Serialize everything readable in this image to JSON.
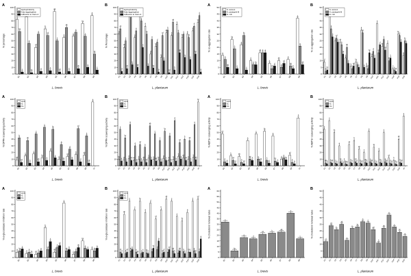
{
  "figure": {
    "background": "#ffffff",
    "layout": "4x3 grid of bar-chart panels from a probiotics characterization figure"
  },
  "colors": {
    "white_bar": "#ffffff",
    "gray_bar": "#8a8a8a",
    "black_bar": "#161616",
    "axis": "#000000"
  },
  "sig_letter_cycle": [
    "a",
    "b",
    "c",
    "d",
    "ab",
    "bc",
    "cd",
    "e"
  ],
  "chart_data": [
    {
      "type": "bar",
      "panel_label": "A",
      "ylabel": "% percentage",
      "xlabel": "L. brevis",
      "ylim": [
        0,
        100
      ],
      "ystep": 10,
      "grid": false,
      "legend_position": "top-left",
      "categories": [
        "B1",
        "B2",
        "B3",
        "B4",
        "B5",
        "B6",
        "B7",
        "B8",
        "B9"
      ],
      "series": [
        {
          "name": "Hydrophobicity",
          "color_key": "white",
          "values": [
            82,
            86,
            40,
            68,
            94,
            55,
            57,
            76,
            88
          ]
        },
        {
          "name": "Auto-aggregation",
          "color_key": "gray",
          "values": [
            64,
            46,
            60,
            58,
            50,
            70,
            63,
            57,
            30
          ]
        },
        {
          "name": "Adhesion to Caco-2",
          "color_key": "black",
          "values": [
            3,
            2,
            4,
            5,
            3,
            4,
            8,
            10,
            6
          ]
        }
      ]
    },
    {
      "type": "bar",
      "panel_label": "B",
      "ylabel": "% Percentage",
      "xlabel": "L. plantarum",
      "ylim": [
        0,
        100
      ],
      "ystep": 10,
      "grid": false,
      "legend_position": "top-left",
      "categories": [
        "P1",
        "P2",
        "P3",
        "P4",
        "P5",
        "P6",
        "P7",
        "P8",
        "P9",
        "P10",
        "P11",
        "P12",
        "P13",
        "P14",
        "P15",
        "P16"
      ],
      "series": [
        {
          "name": "Hydrophobicity",
          "color_key": "white",
          "values": [
            60,
            40,
            92,
            55,
            88,
            72,
            30,
            42,
            25,
            62,
            58,
            75,
            55,
            60,
            65,
            78
          ]
        },
        {
          "name": "Auto-aggregation",
          "color_key": "gray",
          "values": [
            68,
            50,
            85,
            65,
            80,
            60,
            52,
            48,
            58,
            66,
            78,
            62,
            60,
            55,
            72,
            88
          ]
        },
        {
          "name": "Adhesion to Caco-2",
          "color_key": "black",
          "values": [
            4,
            8,
            14,
            10,
            40,
            12,
            9,
            3,
            20,
            2,
            6,
            32,
            25,
            22,
            30,
            3
          ]
        }
      ]
    },
    {
      "type": "bar",
      "panel_label": "A",
      "ylabel": "% co-aggregation rate",
      "xlabel": "L. brevis",
      "ylim": [
        0,
        50
      ],
      "ystep": 5,
      "grid": false,
      "legend_position": "top-left",
      "categories": [
        "B1",
        "B2",
        "B3",
        "B4",
        "B5",
        "B6",
        "B7",
        "B8",
        "B9"
      ],
      "series": [
        {
          "name": "S. aureus",
          "color_key": "white",
          "values": [
            14,
            26,
            22,
            10,
            16,
            8,
            10,
            11,
            42
          ]
        },
        {
          "name": "S. paratyphi B",
          "color_key": "gray",
          "values": [
            11,
            19,
            29,
            7,
            16,
            4,
            5,
            6,
            21
          ]
        },
        {
          "name": "E. coli",
          "color_key": "black",
          "values": [
            5,
            4,
            3,
            7,
            16,
            6,
            8,
            4,
            7
          ]
        }
      ]
    },
    {
      "type": "bar",
      "panel_label": "B",
      "ylabel": "% co-aggregation rate",
      "xlabel": "L. plantarum",
      "ylim": [
        0,
        50
      ],
      "ystep": 5,
      "grid": false,
      "legend_position": "top-left",
      "categories": [
        "P1",
        "P2",
        "P3",
        "P4",
        "P5",
        "P6",
        "P7",
        "P8",
        "P9",
        "P10",
        "P11",
        "P12",
        "P13",
        "P14",
        "P15",
        "P16"
      ],
      "series": [
        {
          "name": "S. aureus",
          "color_key": "white",
          "values": [
            9,
            44,
            25,
            24,
            12,
            6,
            9,
            33,
            6,
            13,
            38,
            21,
            23,
            4,
            30,
            14
          ]
        },
        {
          "name": "S. paratyphi B",
          "color_key": "gray",
          "values": [
            2,
            34,
            27,
            22,
            20,
            4,
            7,
            31,
            4,
            17,
            16,
            26,
            10,
            3,
            29,
            25
          ]
        },
        {
          "name": "E. coli",
          "color_key": "black",
          "values": [
            3,
            28,
            24,
            15,
            8,
            6,
            5,
            5,
            16,
            12,
            22,
            18,
            12,
            2,
            24,
            23
          ]
        }
      ]
    },
    {
      "type": "bar",
      "panel_label": "A",
      "ylabel": "% DPPH scavenging activity",
      "xlabel": "L. brevis",
      "ylim": [
        0,
        100
      ],
      "ystep": 10,
      "grid": false,
      "legend_position": "top-left",
      "categories": [
        "B1",
        "B2",
        "B3",
        "B4",
        "B5",
        "B6",
        "B7",
        "B8",
        "B9",
        "Vc"
      ],
      "series": [
        {
          "name": "CFS",
          "color_key": "white",
          "values": [
            9,
            15,
            18,
            12,
            22,
            10,
            14,
            17,
            16,
            96
          ]
        },
        {
          "name": "IC",
          "color_key": "gray",
          "values": [
            42,
            38,
            48,
            58,
            55,
            32,
            25,
            56,
            45,
            0
          ]
        },
        {
          "name": "CL",
          "color_key": "black",
          "values": [
            5,
            4,
            6,
            8,
            12,
            7,
            9,
            6,
            4,
            0
          ]
        }
      ]
    },
    {
      "type": "bar",
      "panel_label": "B",
      "ylabel": "% DPPH scavenging activity",
      "xlabel": "L. plantarum",
      "ylim": [
        0,
        100
      ],
      "ystep": 10,
      "grid": false,
      "legend_position": "top-left",
      "categories": [
        "P1",
        "P2",
        "P3",
        "P4",
        "P5",
        "P6",
        "P7",
        "P8",
        "P9",
        "P10",
        "P11",
        "P12",
        "P13",
        "P14",
        "P15",
        "P16",
        "Vc"
      ],
      "series": [
        {
          "name": "CFS",
          "color_key": "white",
          "values": [
            10,
            9,
            11,
            8,
            10,
            9,
            12,
            10,
            9,
            11,
            8,
            10,
            14,
            12,
            10,
            13,
            96
          ]
        },
        {
          "name": "IC",
          "color_key": "gray",
          "values": [
            55,
            42,
            62,
            30,
            32,
            28,
            60,
            48,
            38,
            52,
            45,
            68,
            35,
            40,
            38,
            62,
            0
          ]
        },
        {
          "name": "CL",
          "color_key": "black",
          "values": [
            7,
            6,
            8,
            5,
            6,
            5,
            9,
            7,
            6,
            8,
            5,
            7,
            10,
            8,
            6,
            9,
            0
          ]
        }
      ]
    },
    {
      "type": "bar",
      "panel_label": "A",
      "ylabel": "% ABTS+ scavenging activity",
      "xlabel": "L. brevis",
      "ylim": [
        0,
        100
      ],
      "ystep": 10,
      "grid": false,
      "legend_position": "top-left",
      "categories": [
        "B1",
        "B2",
        "B3",
        "B4",
        "B5",
        "B6",
        "B7",
        "B8",
        "B9",
        "Vc"
      ],
      "series": [
        {
          "name": "CFS",
          "color_key": "white",
          "values": [
            48,
            15,
            14,
            38,
            48,
            52,
            45,
            10,
            16,
            72
          ]
        },
        {
          "name": "IC",
          "color_key": "gray",
          "values": [
            6,
            8,
            5,
            10,
            10,
            8,
            7,
            12,
            5,
            0
          ]
        },
        {
          "name": "CL",
          "color_key": "black",
          "values": [
            4,
            3,
            3,
            8,
            6,
            4,
            5,
            9,
            3,
            0
          ]
        }
      ]
    },
    {
      "type": "bar",
      "panel_label": "B",
      "ylabel": "% ABTS+ scavenging activity",
      "xlabel": "L. plantarum",
      "ylim": [
        0,
        100
      ],
      "ystep": 10,
      "grid": false,
      "legend_position": "top-left",
      "categories": [
        "P1",
        "P2",
        "P3",
        "P4",
        "P5",
        "P6",
        "P7",
        "P8",
        "P9",
        "P10",
        "P11",
        "P12",
        "P13",
        "P14",
        "P15",
        "P16",
        "Vc"
      ],
      "series": [
        {
          "name": "CFS",
          "color_key": "white",
          "values": [
            55,
            68,
            50,
            30,
            6,
            32,
            38,
            25,
            20,
            52,
            28,
            22,
            50,
            12,
            8,
            40,
            75
          ]
        },
        {
          "name": "IC",
          "color_key": "gray",
          "values": [
            4,
            5,
            4,
            6,
            3,
            5,
            6,
            4,
            5,
            6,
            4,
            5,
            6,
            4,
            3,
            5,
            0
          ]
        },
        {
          "name": "CL",
          "color_key": "black",
          "values": [
            3,
            4,
            3,
            4,
            2,
            4,
            4,
            3,
            4,
            4,
            3,
            4,
            4,
            3,
            2,
            4,
            0
          ]
        }
      ]
    },
    {
      "type": "bar",
      "panel_label": "A",
      "ylabel": "% α-glucosidase inhibition rate",
      "xlabel": "L. brevis",
      "ylim": [
        0,
        100
      ],
      "ystep": 10,
      "grid": false,
      "legend_position": "top-left",
      "categories": [
        "B1",
        "B2",
        "B3",
        "B4",
        "B5",
        "B6",
        "B7",
        "B8",
        "B9"
      ],
      "series": [
        {
          "name": "CFS",
          "color_key": "white",
          "values": [
            8,
            6,
            5,
            45,
            8,
            82,
            5,
            25,
            12
          ]
        },
        {
          "name": "IC",
          "color_key": "gray",
          "values": [
            10,
            8,
            7,
            12,
            15,
            10,
            9,
            14,
            10
          ]
        },
        {
          "name": "CL",
          "color_key": "black",
          "values": [
            13,
            5,
            10,
            24,
            18,
            12,
            15,
            12,
            14
          ]
        }
      ]
    },
    {
      "type": "bar",
      "panel_label": "B",
      "ylabel": "% α-glucosidase inhibition rate",
      "xlabel": "L. plantarum",
      "ylim": [
        0,
        100
      ],
      "ystep": 10,
      "grid": false,
      "legend_position": "top-left",
      "categories": [
        "P1",
        "P2",
        "P3",
        "P4",
        "P5",
        "P6",
        "P7",
        "P8",
        "P9",
        "P10",
        "P11",
        "P12",
        "P13",
        "P14",
        "P15",
        "P16"
      ],
      "series": [
        {
          "name": "CFS",
          "color_key": "white",
          "values": [
            88,
            65,
            85,
            72,
            85,
            68,
            82,
            58,
            72,
            88,
            85,
            62,
            55,
            68,
            85,
            88
          ]
        },
        {
          "name": "IC",
          "color_key": "gray",
          "values": [
            8,
            6,
            10,
            8,
            6,
            7,
            9,
            12,
            6,
            8,
            10,
            7,
            9,
            8,
            10,
            9
          ]
        },
        {
          "name": "CL",
          "color_key": "black",
          "values": [
            6,
            8,
            12,
            5,
            8,
            6,
            14,
            25,
            8,
            12,
            6,
            10,
            6,
            8,
            6,
            28
          ]
        }
      ]
    },
    {
      "type": "bar",
      "panel_label": "A",
      "ylabel": "% cholesterol removal rates",
      "xlabel": "L. brevis",
      "ylim": [
        0,
        60
      ],
      "ystep": 5,
      "grid": false,
      "legend_position": "none",
      "categories": [
        "B1",
        "B2",
        "B3",
        "B4",
        "B5",
        "B6",
        "B7",
        "B8",
        "B9"
      ],
      "series": [
        {
          "name": "Cholesterol removal",
          "color_key": "gray",
          "values": [
            32,
            6,
            18,
            17,
            21,
            22,
            23,
            40,
            17
          ]
        }
      ]
    },
    {
      "type": "bar",
      "panel_label": "B",
      "ylabel": "% cholesterol removal rates",
      "xlabel": "L. plantarum",
      "ylim": [
        0,
        50
      ],
      "ystep": 5,
      "grid": false,
      "legend_position": "none",
      "categories": [
        "P1",
        "P2",
        "P3",
        "P4",
        "P5",
        "P6",
        "P7",
        "P8",
        "P9",
        "P10",
        "P11",
        "P12",
        "P13",
        "P14",
        "P15",
        "P16"
      ],
      "series": [
        {
          "name": "Cholesterol removal",
          "color_key": "gray",
          "values": [
            12,
            24,
            21,
            25,
            13,
            22,
            23,
            27,
            26,
            21,
            11,
            22,
            32,
            23,
            19,
            16
          ]
        }
      ]
    }
  ]
}
